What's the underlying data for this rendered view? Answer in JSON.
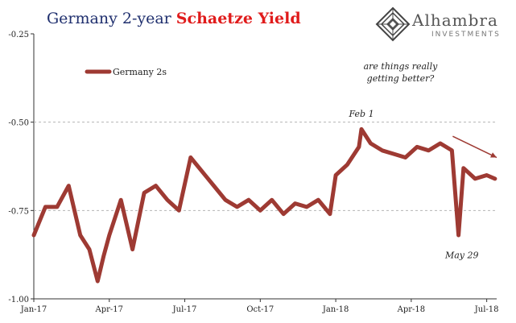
{
  "title_part1": "Germany 2-year ",
  "title_part2": "Schaetze Yield",
  "logo": {
    "name": "Alhambra",
    "subtitle": "INVESTMENTS",
    "icon": "geometric-diamond-logo-icon"
  },
  "colors": {
    "line": "#9e3a33",
    "grid": "#b5b5b5",
    "title_part1": "#1f2f6e",
    "title_part2": "#e01b1b"
  },
  "chart_data": {
    "type": "line",
    "title": "Germany 2-year Schaetze Yield",
    "xlabel": "",
    "ylabel": "",
    "ylim": [
      -1.0,
      -0.25
    ],
    "y_ticks": [
      -1.0,
      -0.75,
      -0.5,
      -0.25
    ],
    "y_tick_labels": [
      "-1.00",
      "-0.75",
      "-0.50",
      "-0.25"
    ],
    "x_tick_labels": [
      "Jan-17",
      "Apr-17",
      "Jul-17",
      "Oct-17",
      "Jan-18",
      "Apr-18",
      "Jul-18"
    ],
    "x_tick_dates": [
      "2017-01-02",
      "2017-04-03",
      "2017-07-03",
      "2017-10-02",
      "2018-01-01",
      "2018-04-02",
      "2018-07-02"
    ],
    "grid": "horizontal dashed at -0.50 and -0.75",
    "legend_position": "top-left",
    "series": [
      {
        "name": "Germany 2s",
        "x": [
          "2017-01-02",
          "2017-01-16",
          "2017-01-30",
          "2017-02-13",
          "2017-02-27",
          "2017-03-10",
          "2017-03-20",
          "2017-03-27",
          "2017-04-03",
          "2017-04-17",
          "2017-05-01",
          "2017-05-15",
          "2017-05-29",
          "2017-06-12",
          "2017-06-26",
          "2017-07-10",
          "2017-07-24",
          "2017-08-07",
          "2017-08-21",
          "2017-09-04",
          "2017-09-18",
          "2017-10-02",
          "2017-10-16",
          "2017-10-30",
          "2017-11-13",
          "2017-11-27",
          "2017-12-11",
          "2017-12-25",
          "2018-01-01",
          "2018-01-15",
          "2018-01-29",
          "2018-02-01",
          "2018-02-12",
          "2018-02-26",
          "2018-03-12",
          "2018-03-26",
          "2018-04-09",
          "2018-04-23",
          "2018-05-07",
          "2018-05-21",
          "2018-05-29",
          "2018-06-04",
          "2018-06-18",
          "2018-07-02",
          "2018-07-12"
        ],
        "y": [
          -0.82,
          -0.74,
          -0.74,
          -0.68,
          -0.82,
          -0.86,
          -0.95,
          -0.88,
          -0.82,
          -0.72,
          -0.86,
          -0.7,
          -0.68,
          -0.72,
          -0.75,
          -0.6,
          -0.64,
          -0.68,
          -0.72,
          -0.74,
          -0.72,
          -0.75,
          -0.72,
          -0.76,
          -0.73,
          -0.74,
          -0.72,
          -0.76,
          -0.65,
          -0.62,
          -0.57,
          -0.52,
          -0.56,
          -0.58,
          -0.59,
          -0.6,
          -0.57,
          -0.58,
          -0.56,
          -0.58,
          -0.82,
          -0.63,
          -0.66,
          -0.65,
          -0.66
        ]
      }
    ],
    "annotations": [
      {
        "text": "are things really",
        "x": "2018-03-20",
        "y": -0.35
      },
      {
        "text": "getting better?",
        "x": "2018-03-20",
        "y": -0.385
      },
      {
        "text": "Feb 1",
        "x": "2018-02-01",
        "y": -0.485
      },
      {
        "text": "May 29",
        "x": "2018-06-02",
        "y": -0.885
      }
    ],
    "arrow": {
      "from": {
        "x": "2018-05-22",
        "y": -0.54
      },
      "to": {
        "x": "2018-07-14",
        "y": -0.6
      }
    }
  }
}
